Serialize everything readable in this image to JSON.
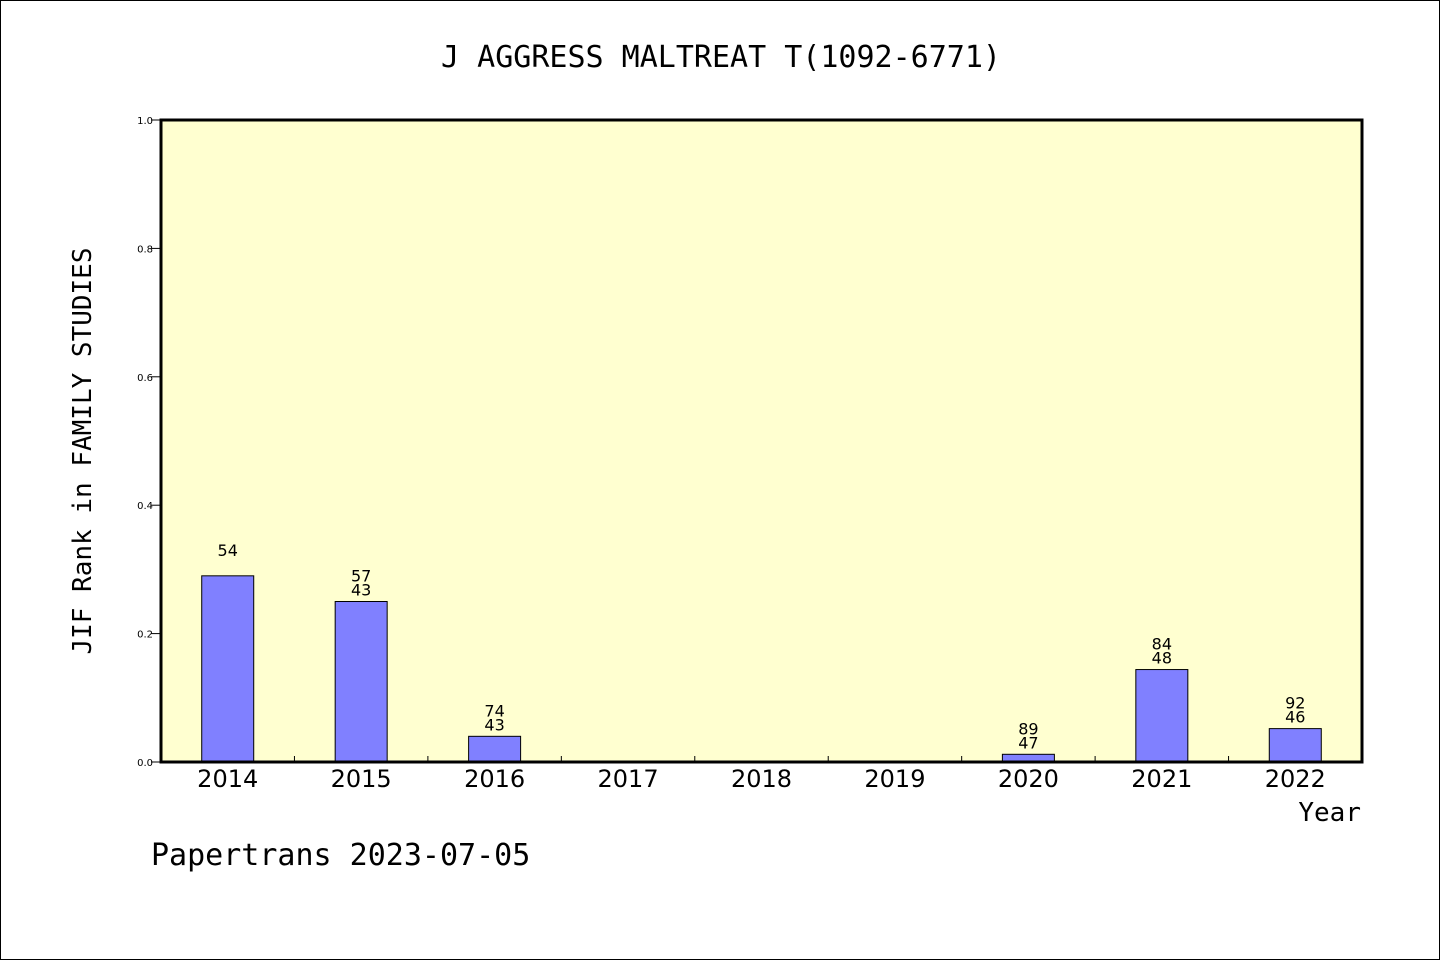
{
  "chart_data": {
    "type": "bar",
    "title": "J AGGRESS MALTREAT T(1092-6771)",
    "xlabel": "Year",
    "ylabel": "JIF Rank in FAMILY STUDIES",
    "ylim": [
      0,
      1.0
    ],
    "yticks": [
      "0.0",
      "0.2",
      "0.4",
      "0.6",
      "0.8",
      "1.0"
    ],
    "categories": [
      "2014",
      "2015",
      "2016",
      "2017",
      "2018",
      "2019",
      "2020",
      "2021",
      "2022"
    ],
    "values": [
      0.29,
      0.25,
      0.04,
      null,
      null,
      null,
      0.012,
      0.144,
      0.052
    ],
    "labels": [
      [
        "54"
      ],
      [
        "57",
        "43"
      ],
      [
        "74",
        "43"
      ],
      [],
      [],
      [],
      [
        "89",
        "47"
      ],
      [
        "84",
        "48"
      ],
      [
        "92",
        "46"
      ]
    ],
    "grid": false,
    "colors": {
      "bar": "#8080ff",
      "plot_background": "#ffffd0",
      "axis": "#000000"
    }
  },
  "footer": "Papertrans 2023-07-05"
}
